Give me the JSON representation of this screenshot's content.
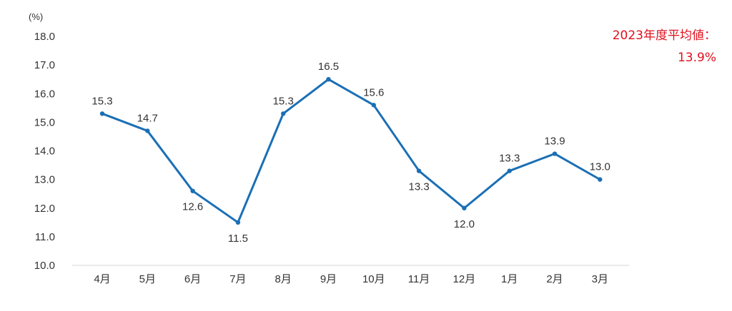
{
  "chart_data": {
    "type": "line",
    "title": "",
    "xlabel": "",
    "ylabel": "",
    "y_unit": "(%)",
    "categories": [
      "4月",
      "5月",
      "6月",
      "7月",
      "8月",
      "9月",
      "10月",
      "11月",
      "12月",
      "1月",
      "2月",
      "3月"
    ],
    "series": [
      {
        "values": [
          15.3,
          14.7,
          12.6,
          11.5,
          15.3,
          16.5,
          15.6,
          13.3,
          12.0,
          13.3,
          13.9,
          13.0
        ],
        "data_labels": [
          "15.3",
          "14.7",
          "12.6",
          "11.5",
          "15.3",
          "16.5",
          "15.6",
          "13.3",
          "12.0",
          "13.3",
          "13.9",
          "13.0"
        ],
        "label_side": [
          "above",
          "above",
          "below",
          "below",
          "above",
          "above",
          "above",
          "below",
          "below",
          "above",
          "above",
          "above"
        ],
        "color": "#1a6fb5"
      }
    ],
    "ylim": [
      10.0,
      18.0
    ],
    "y_ticks": [
      "10.0",
      "11.0",
      "12.0",
      "13.0",
      "14.0",
      "15.0",
      "16.0",
      "17.0",
      "18.0"
    ],
    "grid": false,
    "legend": "none",
    "annotation": {
      "line1": "2023年度平均値：",
      "line2": "13.9%",
      "color": "#e0101e"
    }
  }
}
